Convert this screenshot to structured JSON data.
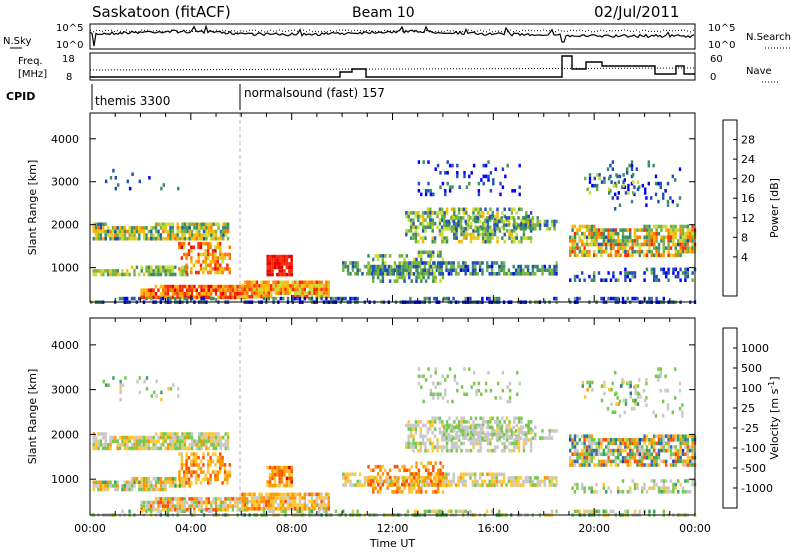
{
  "header": {
    "station": "Saskatoon (fitACF)",
    "beam": "Beam 10",
    "date": "02/Jul/2011"
  },
  "noise_panel": {
    "left_label": "N.Sky",
    "right_label": "N.Search",
    "left_ticks": [
      "10^5",
      "10^0"
    ],
    "right_ticks": [
      "10^5",
      "10^0"
    ]
  },
  "freq_panel": {
    "left_label_1": "Freq.",
    "left_label_2": "[MHz]",
    "left_ticks": [
      "18",
      "8"
    ],
    "right_label": "Nave",
    "right_ticks": [
      "60",
      "0"
    ]
  },
  "cpid": {
    "label": "CPID",
    "segments": [
      {
        "text": "themis 3300"
      },
      {
        "text": "normalsound (fast) 157"
      }
    ]
  },
  "chart_data": [
    {
      "type": "heatmap",
      "name": "power",
      "ylabel": "Slant Range [km]",
      "y_ticks": [
        "1000",
        "2000",
        "3000",
        "4000"
      ],
      "ylim": [
        200,
        4600
      ],
      "colorbar_label": "Power [dB]",
      "colorbar_ticks": [
        "28",
        "24",
        "20",
        "16",
        "12",
        "8",
        "4"
      ],
      "colors": [
        "#0000ff",
        "#1f50b4",
        "#3c8c64",
        "#78b43c",
        "#c8dc32",
        "#ffb400",
        "#ff7800",
        "#ff2800",
        "#e60000"
      ]
    },
    {
      "type": "heatmap",
      "name": "velocity",
      "ylabel": "Slant Range [km]",
      "y_ticks": [
        "1000",
        "2000",
        "3000",
        "4000"
      ],
      "ylim": [
        200,
        4600
      ],
      "colorbar_label": "Velocity [m s",
      "colorbar_label_sup": "-1",
      "colorbar_ticks": [
        "1000",
        "500",
        "100",
        "25",
        "-25",
        "-100",
        "-500",
        "-1000"
      ],
      "colors": [
        "#1e3caa",
        "#2d6eaa",
        "#3ca064",
        "#78c850",
        "#c8c8c8",
        "#ffc832",
        "#ff9600",
        "#ff5000",
        "#e60000"
      ]
    }
  ],
  "x_axis": {
    "label": "Time UT",
    "ticks": [
      "00:00",
      "04:00",
      "08:00",
      "12:00",
      "16:00",
      "20:00",
      "00:00"
    ]
  }
}
